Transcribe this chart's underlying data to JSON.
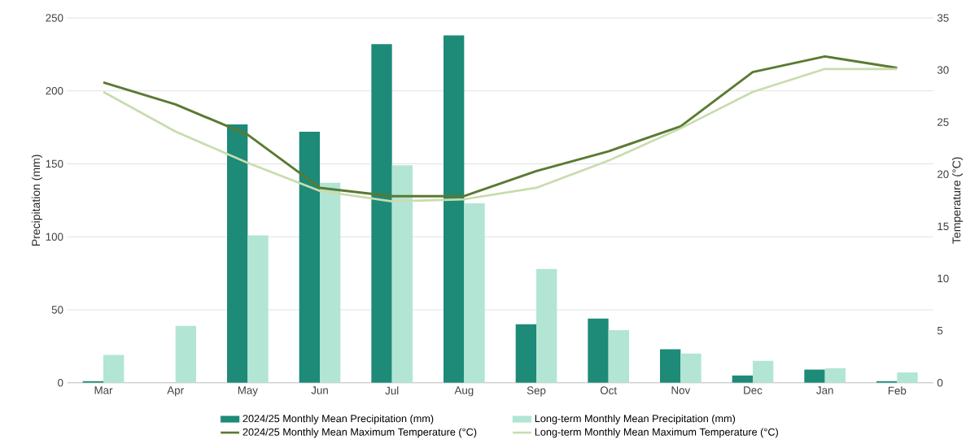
{
  "chart_data": {
    "type": "bar",
    "categories": [
      "Mar",
      "Apr",
      "May",
      "Jun",
      "Jul",
      "Aug",
      "Sep",
      "Oct",
      "Nov",
      "Dec",
      "Jan",
      "Feb"
    ],
    "ylabel": "Precipitation (mm)",
    "y2label": "Temperature (°C)",
    "ylim": [
      0,
      250
    ],
    "yticks": [
      0,
      50,
      100,
      150,
      200,
      250
    ],
    "y2lim": [
      0,
      35
    ],
    "y2ticks": [
      0,
      5,
      10,
      15,
      20,
      25,
      30,
      35
    ],
    "grid": "y",
    "legend": "bottom",
    "series": [
      {
        "name": "2024/25 Monthly Mean Precipitation (mm)",
        "color": "#1e8a78",
        "values": [
          1,
          0,
          177,
          172,
          232,
          238,
          40,
          44,
          23,
          5,
          9,
          1
        ]
      },
      {
        "name": "Long-term Monthly Mean Precipitation (mm)",
        "color": "#b2e5d4",
        "values": [
          19,
          39,
          101,
          137,
          149,
          123,
          78,
          36,
          20,
          15,
          10,
          7
        ]
      },
      {
        "name": "2024/25 Monthly Mean Maximum Temperature (°C)",
        "type": "line",
        "axis": "y2",
        "color": "#5a7a32",
        "values": [
          28.8,
          26.7,
          23.8,
          18.7,
          17.9,
          17.9,
          20.3,
          22.2,
          24.6,
          29.8,
          31.3,
          30.2
        ]
      },
      {
        "name": "Long-term Monthly Mean Maximum Temperature (°C)",
        "type": "line",
        "axis": "y2",
        "color": "#c8dcae",
        "values": [
          27.9,
          24.1,
          21.1,
          18.4,
          17.4,
          17.6,
          18.7,
          21.3,
          24.4,
          27.9,
          30.1,
          30.1
        ]
      }
    ]
  }
}
